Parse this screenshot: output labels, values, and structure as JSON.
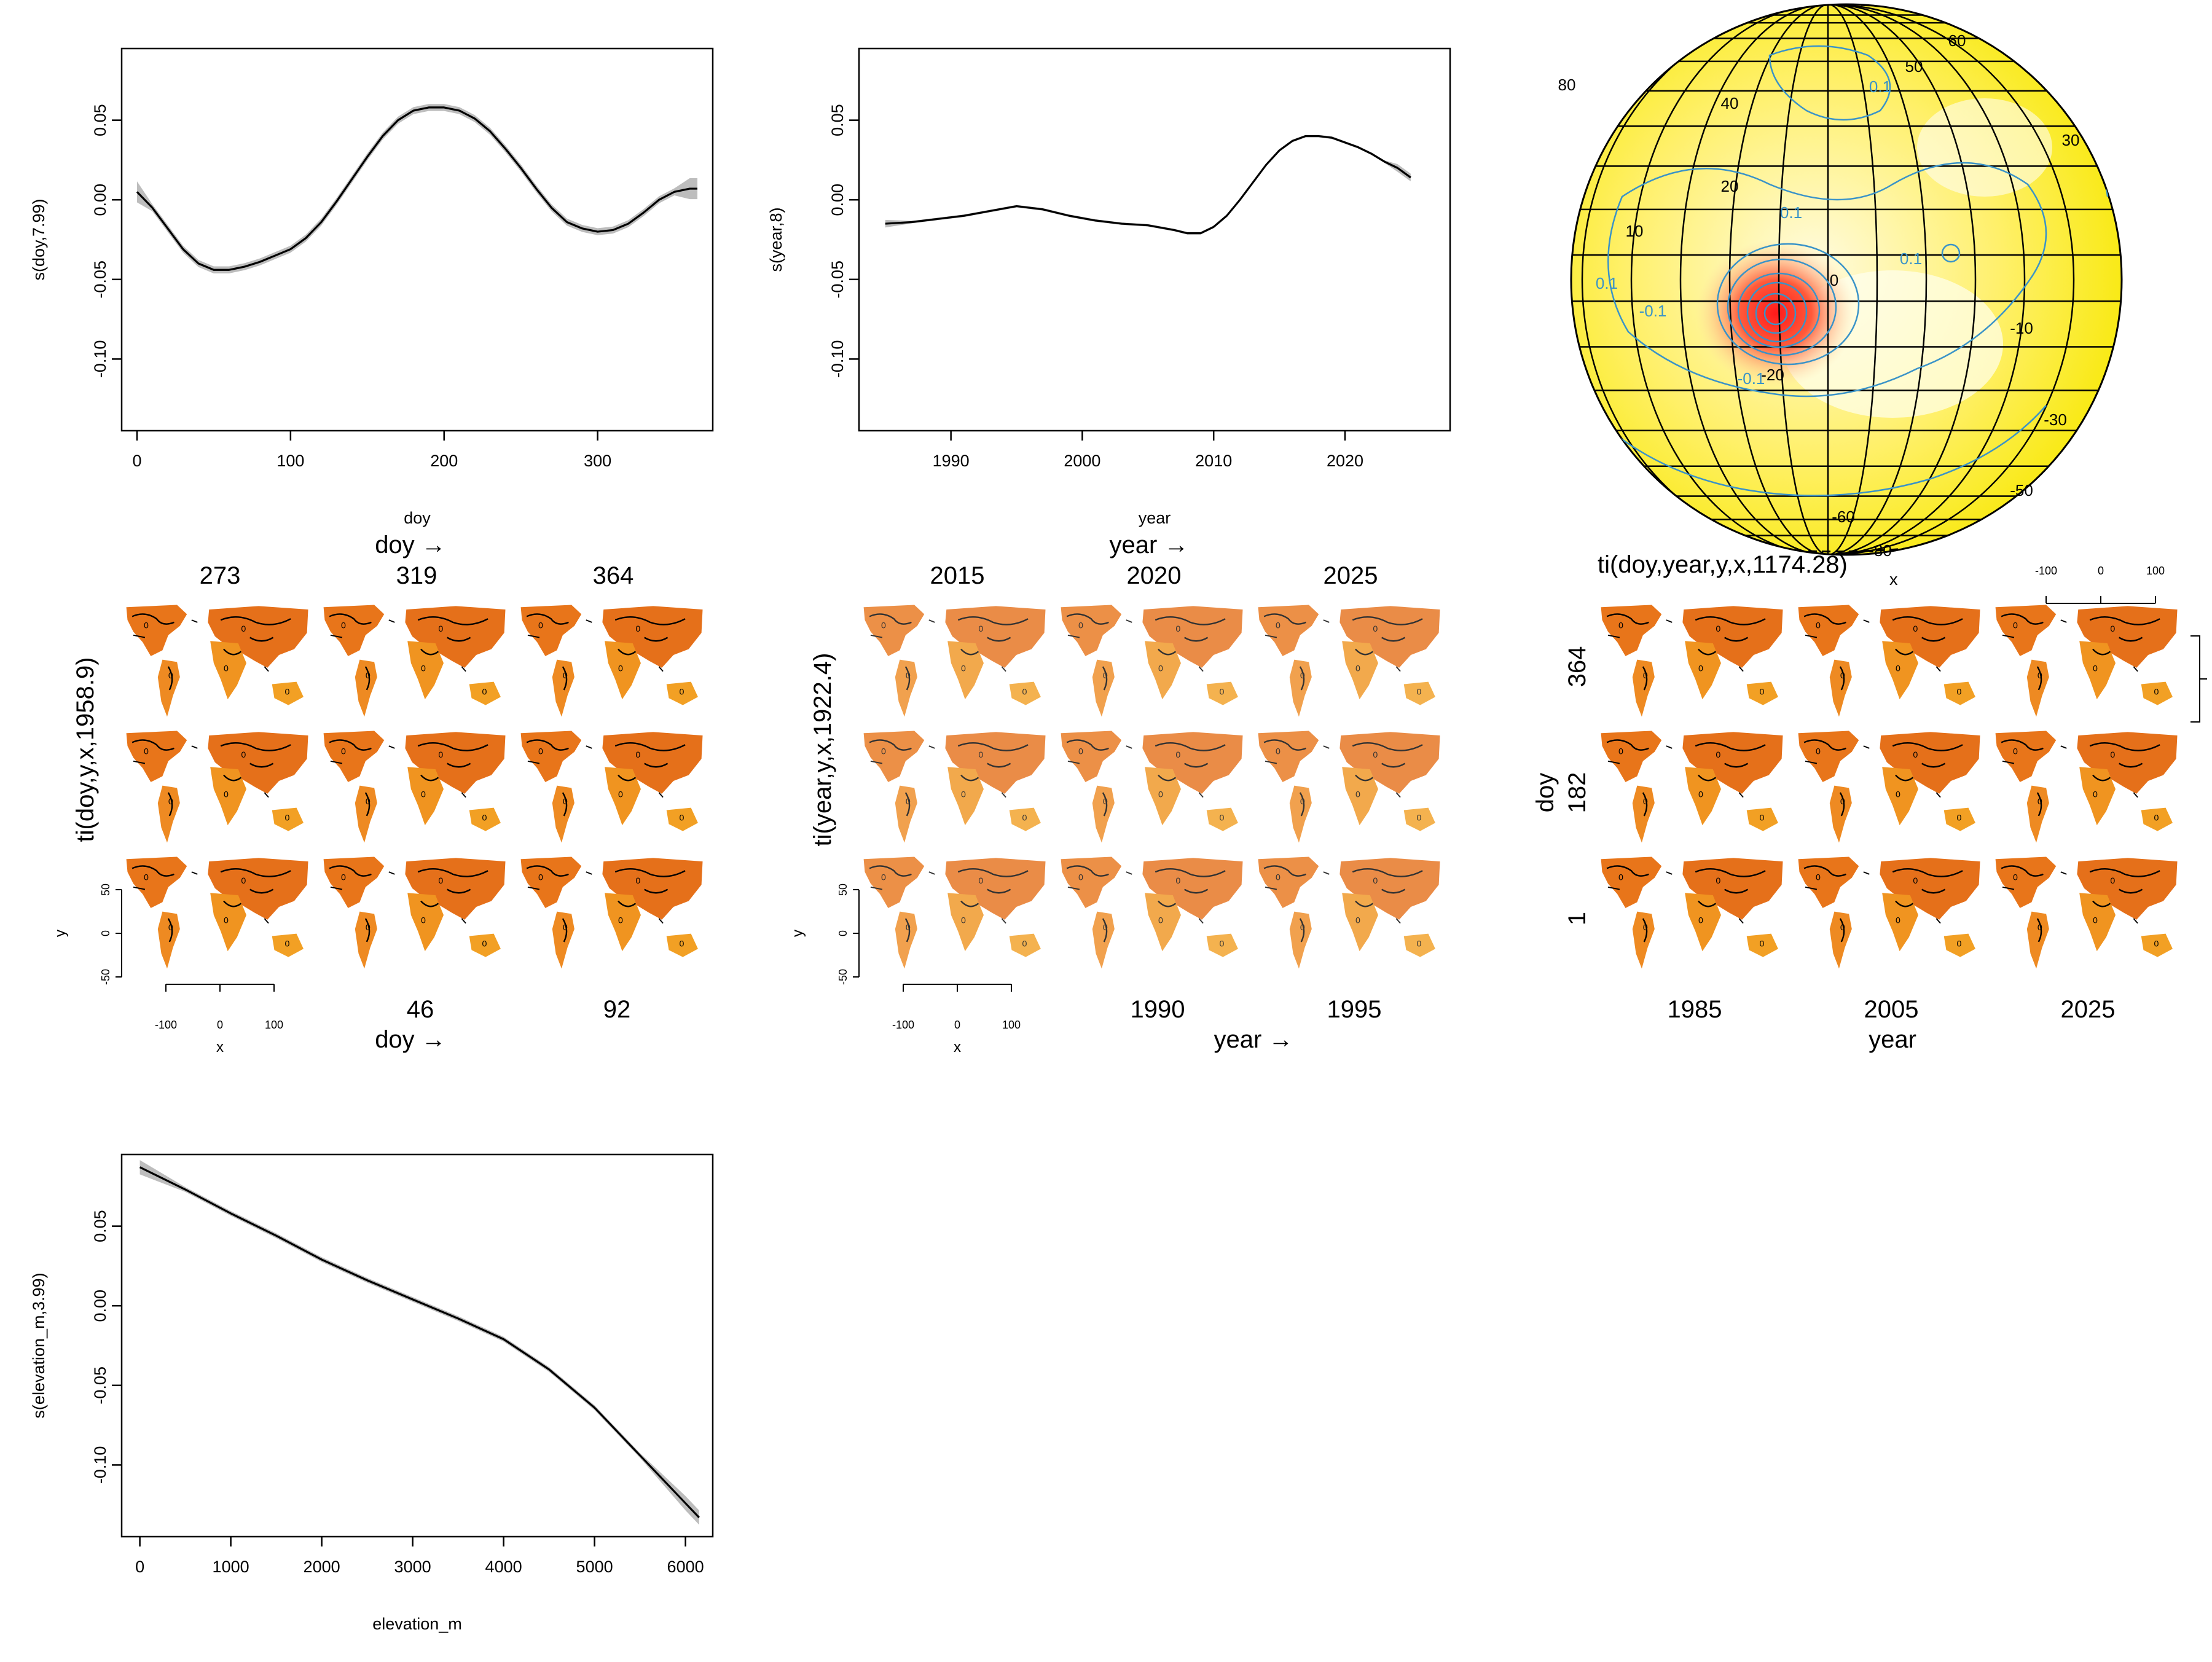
{
  "panels": {
    "doy": {
      "ylabel": "s(doy,7.99)",
      "xlabel": "doy",
      "yticks": [
        "-0.10",
        "-0.05",
        "0.00",
        "0.05"
      ],
      "xticks": [
        "0",
        "100",
        "200",
        "300"
      ]
    },
    "year": {
      "ylabel": "s(year,8)",
      "xlabel": "year",
      "yticks": [
        "-0.10",
        "-0.05",
        "0.00",
        "0.05"
      ],
      "xticks": [
        "1990",
        "2000",
        "2010",
        "2020"
      ]
    },
    "globe": {
      "lat_labels": [
        "40",
        "20",
        "10",
        "0",
        "-10",
        "-20",
        "-30",
        "-50",
        "-60",
        "-80",
        "50",
        "30",
        "60",
        "80"
      ],
      "contour_labels": [
        "0.1",
        "0.1",
        "-0.1",
        "-0.1",
        "0.1",
        "0.1"
      ]
    },
    "ti_doy": {
      "ylabel": "ti(doy,y,x,1958.9)",
      "top_axis": "doy →",
      "bottom_axis": "doy →",
      "top_ticks": [
        "273",
        "319",
        "364"
      ],
      "bottom_ticks": [
        "46",
        "92"
      ],
      "y_axis": "y",
      "y_ticks": [
        "50",
        "0",
        "-50"
      ],
      "x_axis": "x",
      "x_ticks": [
        "-100",
        "0",
        "100"
      ]
    },
    "ti_year": {
      "ylabel": "ti(year,y,x,1922.4)",
      "top_axis": "year →",
      "bottom_axis": "year →",
      "top_ticks": [
        "2015",
        "2020",
        "2025"
      ],
      "bottom_ticks": [
        "1990",
        "1995"
      ],
      "y_axis": "y",
      "y_ticks": [
        "50",
        "0",
        "-50"
      ],
      "x_axis": "x",
      "x_ticks": [
        "-100",
        "0",
        "100"
      ]
    },
    "ti_doy_year": {
      "title": "ti(doy,year,y,x,1174.28)",
      "title_sub": "x",
      "ylabel": "doy",
      "y_ticks": [
        "364",
        "182",
        "1"
      ],
      "bottom_ticks": [
        "1985",
        "2005",
        "2025"
      ],
      "xlabel": "year",
      "x_ticks": [
        "-100",
        "0",
        "100"
      ]
    },
    "elev": {
      "ylabel": "s(elevation_m,3.99)",
      "xlabel": "elevation_m",
      "yticks": [
        "-0.10",
        "-0.05",
        "0.00",
        "0.05"
      ],
      "xticks": [
        "0",
        "1000",
        "2000",
        "3000",
        "4000",
        "5000",
        "6000"
      ]
    }
  },
  "chart_data": [
    {
      "type": "line",
      "ylabel": "s(doy,7.99)",
      "xlabel": "doy",
      "xlim": [
        -10,
        375
      ],
      "ylim": [
        -0.145,
        0.095
      ],
      "x": [
        0,
        10,
        20,
        30,
        40,
        50,
        60,
        70,
        80,
        90,
        100,
        110,
        120,
        130,
        140,
        150,
        160,
        170,
        180,
        190,
        200,
        210,
        220,
        230,
        240,
        250,
        260,
        270,
        280,
        290,
        300,
        310,
        320,
        330,
        340,
        350,
        360,
        365
      ],
      "y": [
        0.005,
        -0.005,
        -0.018,
        -0.031,
        -0.04,
        -0.044,
        -0.044,
        -0.042,
        -0.039,
        -0.035,
        -0.031,
        -0.024,
        -0.014,
        -0.001,
        0.013,
        0.027,
        0.04,
        0.05,
        0.056,
        0.058,
        0.058,
        0.056,
        0.051,
        0.043,
        0.032,
        0.02,
        0.007,
        -0.005,
        -0.014,
        -0.018,
        -0.02,
        -0.019,
        -0.015,
        -0.008,
        0.0,
        0.005,
        0.007,
        0.007
      ]
    },
    {
      "type": "line",
      "ylabel": "s(year,8)",
      "xlabel": "year",
      "xlim": [
        1983,
        2028
      ],
      "ylim": [
        -0.145,
        0.095
      ],
      "x": [
        1985,
        1987,
        1989,
        1991,
        1993,
        1995,
        1997,
        1999,
        2001,
        2003,
        2005,
        2007,
        2008,
        2009,
        2010,
        2011,
        2012,
        2013,
        2014,
        2015,
        2016,
        2017,
        2018,
        2019,
        2020,
        2021,
        2022,
        2023,
        2024,
        2025
      ],
      "y": [
        -0.015,
        -0.014,
        -0.012,
        -0.01,
        -0.007,
        -0.004,
        -0.006,
        -0.01,
        -0.013,
        -0.015,
        -0.016,
        -0.019,
        -0.021,
        -0.021,
        -0.017,
        -0.01,
        0.0,
        0.011,
        0.022,
        0.031,
        0.037,
        0.04,
        0.04,
        0.039,
        0.036,
        0.033,
        0.029,
        0.024,
        0.02,
        0.014
      ]
    },
    {
      "type": "line",
      "ylabel": "s(elevation_m,3.99)",
      "xlabel": "elevation_m",
      "xlim": [
        -200,
        6300
      ],
      "ylim": [
        -0.145,
        0.095
      ],
      "x": [
        0,
        500,
        1000,
        1500,
        2000,
        2500,
        3000,
        3500,
        4000,
        4500,
        5000,
        5500,
        6000,
        6150
      ],
      "y": [
        0.087,
        0.073,
        0.058,
        0.044,
        0.029,
        0.016,
        0.004,
        -0.008,
        -0.021,
        -0.04,
        -0.064,
        -0.094,
        -0.124,
        -0.133
      ]
    }
  ]
}
